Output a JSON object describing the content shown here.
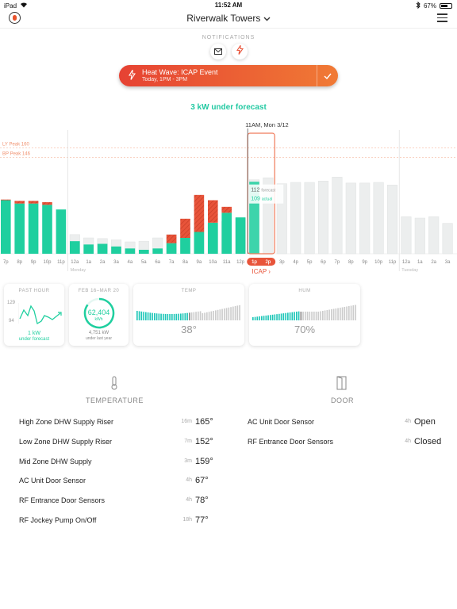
{
  "status_bar": {
    "device": "iPad",
    "time": "11:52 AM",
    "battery": "67%",
    "battery_level": 0.67
  },
  "header": {
    "title": "Riverwalk Towers"
  },
  "notifications": {
    "label": "NOTIFICATIONS"
  },
  "event": {
    "title": "Heat Wave: ICAP Event",
    "time": "Today, 1PM - 3PM"
  },
  "forecast_headline": "3 kW under forecast",
  "colors": {
    "teal": "#1fcf9f",
    "red": "#e8543a",
    "accent_orange": "#f07a5a",
    "forecast_gray": "#eceeee"
  },
  "chart_data": {
    "type": "bar",
    "now_label": "11AM, Mon 3/12",
    "reference_lines": [
      {
        "label": "LY Peak 160",
        "value": 160
      },
      {
        "label": "BP Peak 146",
        "value": 146
      }
    ],
    "ylim": [
      0,
      180
    ],
    "categories": [
      "7p",
      "8p",
      "9p",
      "10p",
      "11p",
      "12a",
      "1a",
      "2a",
      "3a",
      "4a",
      "5a",
      "6a",
      "7a",
      "8a",
      "9a",
      "10a",
      "11a",
      "12p",
      "1p",
      "2p",
      "3p",
      "4p",
      "5p",
      "6p",
      "7p",
      "8p",
      "9p",
      "10p",
      "11p",
      "12a",
      "1a",
      "2a",
      "3a"
    ],
    "day_labels": [
      {
        "label": "Monday",
        "index": 5
      },
      {
        "label": "Tuesday",
        "index": 29
      }
    ],
    "series": [
      {
        "name": "actual",
        "values": [
          81,
          76,
          76,
          74,
          67,
          19,
          14,
          15,
          11,
          8,
          6,
          8,
          16,
          24,
          33,
          47,
          62,
          55,
          109,
          null,
          null,
          null,
          null,
          null,
          null,
          null,
          null,
          null,
          null,
          null,
          null,
          null,
          null
        ]
      },
      {
        "name": "over forecast",
        "values": [
          1,
          4,
          4,
          4,
          0,
          0,
          0,
          0,
          0,
          0,
          0,
          0,
          13,
          29,
          56,
          34,
          9,
          0,
          0,
          null,
          null,
          null,
          null,
          null,
          null,
          null,
          null,
          null,
          null,
          null,
          null,
          null,
          null
        ]
      },
      {
        "name": "forecast",
        "values": [
          null,
          null,
          null,
          null,
          null,
          29,
          24,
          23,
          21,
          18,
          19,
          24,
          29,
          41,
          53,
          46,
          49,
          54,
          112,
          115,
          106,
          108,
          108,
          110,
          116,
          107,
          107,
          108,
          104,
          56,
          54,
          56,
          46
        ]
      }
    ],
    "tooltip": {
      "forecast_value": "112",
      "forecast_label": "forecast",
      "actual_value": "109",
      "actual_label": "actual"
    },
    "icap_window": [
      "1p",
      "2p"
    ],
    "icap_label": "ICAP ›"
  },
  "cards": {
    "past_hour": {
      "caption": "PAST HOUR",
      "y_max": "129",
      "y_min": "94",
      "value": "1 kW",
      "sub": "under forecast"
    },
    "period": {
      "caption": "FEB 16–MAR 20",
      "value": "62,404",
      "unit": "kWh",
      "progress": 0.85,
      "detail": "4,751 kW",
      "detail_sub": "under last year"
    },
    "temp": {
      "caption": "TEMP",
      "value": "38°"
    },
    "hum": {
      "caption": "HUM",
      "value": "70%"
    }
  },
  "temperature": {
    "title": "TEMPERATURE",
    "rows": [
      {
        "label": "High Zone DHW Supply Riser",
        "age": "16m",
        "value": "165°"
      },
      {
        "label": "Low Zone DHW Supply Riser",
        "age": "7m",
        "value": "152°"
      },
      {
        "label": "Mid Zone DHW Supply",
        "age": "3m",
        "value": "159°"
      },
      {
        "label": "AC Unit Door Sensor",
        "age": "4h",
        "value": "67°"
      },
      {
        "label": "RF Entrance Door Sensors",
        "age": "4h",
        "value": "78°"
      },
      {
        "label": "RF Jockey Pump On/Off",
        "age": "18h",
        "value": "77°"
      }
    ]
  },
  "door": {
    "title": "DOOR",
    "rows": [
      {
        "label": "AC Unit Door Sensor",
        "age": "4h",
        "value": "Open"
      },
      {
        "label": "RF Entrance Door Sensors",
        "age": "4h",
        "value": "Closed"
      }
    ]
  }
}
